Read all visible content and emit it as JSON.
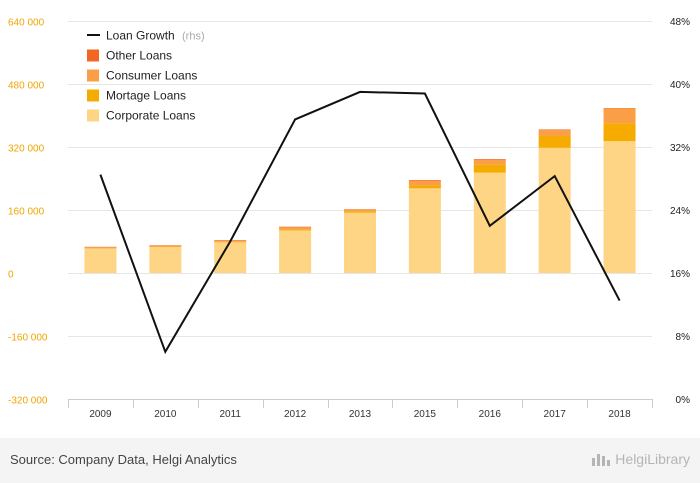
{
  "colors": {
    "corporate": "#fdd584",
    "mortgage": "#f5ab00",
    "consumer": "#fa9f46",
    "other": "#f26522",
    "growth_line": "#111111",
    "left_axis_text": "#f0a500",
    "grid": "#e6e6e6"
  },
  "legend": {
    "growth": "Loan Growth",
    "growth_suffix": "(rhs)",
    "other": "Other Loans",
    "consumer": "Consumer Loans",
    "mortgage": "Mortage Loans",
    "corporate": "Corporate Loans"
  },
  "footer": {
    "source": "Source: Company Data, Helgi Analytics",
    "brand": "HelgiLibrary"
  },
  "chart_data": {
    "type": "bar",
    "stacked": true,
    "categories": [
      "2009",
      "2010",
      "2011",
      "2012",
      "2013",
      "2015",
      "2016",
      "2017",
      "2018"
    ],
    "series": [
      {
        "name": "Corporate Loans",
        "values": [
          62000,
          66000,
          78000,
          108000,
          153000,
          215000,
          255000,
          318000,
          335000
        ]
      },
      {
        "name": "Mortage Loans",
        "values": [
          1000,
          1000,
          1500,
          3000,
          4000,
          7000,
          20000,
          30000,
          45000
        ]
      },
      {
        "name": "Consumer Loans",
        "values": [
          2500,
          2500,
          3000,
          5000,
          4000,
          12000,
          12000,
          15000,
          38000
        ]
      },
      {
        "name": "Other Loans",
        "values": [
          1000,
          1000,
          1000,
          1500,
          1000,
          2000,
          2000,
          1500,
          1000
        ]
      }
    ],
    "line_series": {
      "name": "Loan Growth",
      "axis": "rhs",
      "unit": "%",
      "values": [
        28.5,
        6.0,
        20.0,
        35.5,
        39.0,
        38.8,
        22.0,
        28.3,
        12.5
      ]
    },
    "y_left": {
      "ticks": [
        640000,
        480000,
        320000,
        160000,
        0,
        -160000,
        -320000
      ],
      "tick_labels": [
        "640 000",
        "480 000",
        "320 000",
        "160 000",
        "0",
        "-160 000",
        "-320 000"
      ],
      "ylim": [
        -320000,
        640000
      ]
    },
    "y_right": {
      "ticks": [
        48,
        40,
        32,
        24,
        16,
        8,
        0
      ],
      "tick_labels": [
        "48%",
        "40%",
        "32%",
        "24%",
        "16%",
        "8%",
        "0%"
      ],
      "ylim": [
        0,
        48
      ]
    },
    "grid": true,
    "legend_position": "top-left"
  }
}
